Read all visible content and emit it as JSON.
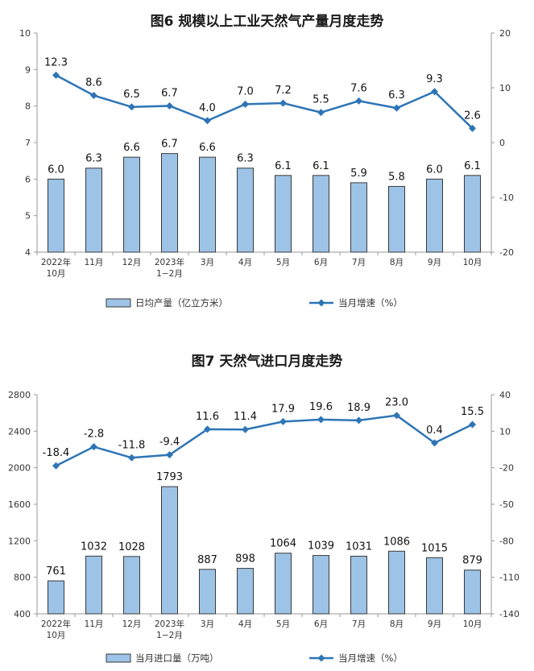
{
  "chart_data": [
    {
      "type": "bar",
      "title": "图6  规模以上工业天然气产量月度走势",
      "categories": [
        [
          "2022年",
          "10月"
        ],
        [
          "11月"
        ],
        [
          "12月"
        ],
        [
          "2023年",
          "1−2月"
        ],
        [
          "3月"
        ],
        [
          "4月"
        ],
        [
          "5月"
        ],
        [
          "6月"
        ],
        [
          "7月"
        ],
        [
          "8月"
        ],
        [
          "9月"
        ],
        [
          "10月"
        ]
      ],
      "series": [
        {
          "name": "日均产量（亿立方米）",
          "kind": "bar",
          "axis": "left",
          "values": [
            6.0,
            6.3,
            6.6,
            6.7,
            6.6,
            6.3,
            6.1,
            6.1,
            5.9,
            5.8,
            6.0,
            6.1
          ],
          "labels": [
            "6.0",
            "6.3",
            "6.6",
            "6.7",
            "6.6",
            "6.3",
            "6.1",
            "6.1",
            "5.9",
            "5.8",
            "6.0",
            "6.1"
          ]
        },
        {
          "name": "当月增速（%）",
          "kind": "line",
          "axis": "right",
          "values": [
            12.3,
            8.6,
            6.5,
            6.7,
            4.0,
            7.0,
            7.2,
            5.5,
            7.6,
            6.3,
            9.3,
            2.6
          ],
          "labels": [
            "12.3",
            "8.6",
            "6.5",
            "6.7",
            "4.0",
            "7.0",
            "7.2",
            "5.5",
            "7.6",
            "6.3",
            "9.3",
            "2.6"
          ]
        }
      ],
      "y_left": {
        "min": 4,
        "max": 10,
        "ticks": [
          "4",
          "5",
          "6",
          "7",
          "8",
          "9",
          "10"
        ]
      },
      "y_right": {
        "min": -20,
        "max": 20,
        "ticks": [
          "-20",
          "-10",
          "0",
          "10",
          "20"
        ]
      },
      "colors": {
        "bar_fill": "#9dc3e6",
        "bar_stroke": "#3a3a3a",
        "line": "#2e75b6"
      },
      "legend_position": "bottom"
    },
    {
      "type": "bar",
      "title": "图7  天然气进口月度走势",
      "categories": [
        [
          "2022年",
          "10月"
        ],
        [
          "11月"
        ],
        [
          "12月"
        ],
        [
          "2023年",
          "1−2月"
        ],
        [
          "3月"
        ],
        [
          "4月"
        ],
        [
          "5月"
        ],
        [
          "6月"
        ],
        [
          "7月"
        ],
        [
          "8月"
        ],
        [
          "9月"
        ],
        [
          "10月"
        ]
      ],
      "series": [
        {
          "name": "当月进口量（万吨）",
          "kind": "bar",
          "axis": "left",
          "values": [
            761,
            1032,
            1028,
            1793,
            887,
            898,
            1064,
            1039,
            1031,
            1086,
            1015,
            879
          ],
          "labels": [
            "761",
            "1032",
            "1028",
            "1793",
            "887",
            "898",
            "1064",
            "1039",
            "1031",
            "1086",
            "1015",
            "879"
          ]
        },
        {
          "name": "当月增速（%）",
          "kind": "line",
          "axis": "right",
          "values": [
            -18.4,
            -2.8,
            -11.8,
            -9.4,
            11.6,
            11.4,
            17.9,
            19.6,
            18.9,
            23.0,
            0.4,
            15.5
          ],
          "labels": [
            "-18.4",
            "-2.8",
            "-11.8",
            "-9.4",
            "11.6",
            "11.4",
            "17.9",
            "19.6",
            "18.9",
            "23.0",
            "0.4",
            "15.5"
          ]
        }
      ],
      "y_left": {
        "min": 400,
        "max": 2800,
        "ticks": [
          "400",
          "800",
          "1200",
          "1600",
          "2000",
          "2400",
          "2800"
        ]
      },
      "y_right": {
        "min": -140,
        "max": 40,
        "ticks": [
          "-140",
          "-110",
          "-80",
          "-50",
          "-20",
          "10",
          "40"
        ]
      },
      "colors": {
        "bar_fill": "#9dc3e6",
        "bar_stroke": "#3a3a3a",
        "line": "#2e75b6"
      },
      "legend_position": "bottom"
    }
  ]
}
